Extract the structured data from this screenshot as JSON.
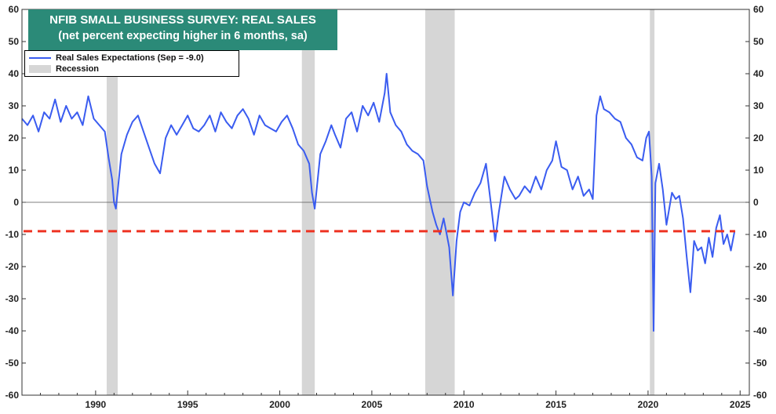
{
  "title_line1": "NFIB SMALL BUSINESS SURVEY: REAL SALES",
  "title_line2": "(net percent expecting higher in 6 months, sa)",
  "legend": {
    "series_label": "Real Sales Expectations (Sep = -9.0)",
    "recession_label": "Recession"
  },
  "colors": {
    "series": "#3a5cf0",
    "recession": "#d6d6d6",
    "reference_line": "#ee3322",
    "title_bg": "#2b8a78"
  },
  "chart_data": {
    "type": "line",
    "title": "NFIB SMALL BUSINESS SURVEY: REAL SALES",
    "subtitle": "(net percent expecting higher in 6 months, sa)",
    "xlabel": "",
    "ylabel": "",
    "xlim": [
      1986,
      2025.5
    ],
    "ylim": [
      -60,
      60
    ],
    "y_ticks": [
      60,
      50,
      40,
      30,
      20,
      10,
      0,
      -10,
      -20,
      -30,
      -40,
      -50,
      -60
    ],
    "x_ticks": [
      1990,
      1995,
      2000,
      2005,
      2010,
      2015,
      2020,
      2025
    ],
    "grid": false,
    "legend_position": "top-left",
    "reference_line": {
      "y": -9,
      "style": "dashed",
      "label": "Sep = -9.0"
    },
    "recessions": [
      [
        1990.6,
        1991.2
      ],
      [
        2001.2,
        2001.9
      ],
      [
        2007.9,
        2009.5
      ],
      [
        2020.1,
        2020.35
      ]
    ],
    "series": [
      {
        "name": "Real Sales Expectations",
        "x": [
          1986.0,
          1986.3,
          1986.6,
          1986.9,
          1987.2,
          1987.5,
          1987.8,
          1988.1,
          1988.4,
          1988.7,
          1989.0,
          1989.3,
          1989.6,
          1989.9,
          1990.2,
          1990.5,
          1990.7,
          1990.9,
          1991.0,
          1991.1,
          1991.4,
          1991.7,
          1992.0,
          1992.3,
          1992.6,
          1992.9,
          1993.2,
          1993.5,
          1993.8,
          1994.1,
          1994.4,
          1994.7,
          1995.0,
          1995.3,
          1995.6,
          1995.9,
          1996.2,
          1996.5,
          1996.8,
          1997.1,
          1997.4,
          1997.7,
          1998.0,
          1998.3,
          1998.6,
          1998.9,
          1999.2,
          1999.5,
          1999.8,
          2000.1,
          2000.4,
          2000.7,
          2001.0,
          2001.3,
          2001.6,
          2001.75,
          2001.9,
          2002.2,
          2002.5,
          2002.8,
          2003.0,
          2003.3,
          2003.6,
          2003.9,
          2004.2,
          2004.5,
          2004.8,
          2005.1,
          2005.4,
          2005.7,
          2005.8,
          2006.0,
          2006.3,
          2006.6,
          2006.9,
          2007.2,
          2007.5,
          2007.8,
          2008.0,
          2008.3,
          2008.5,
          2008.7,
          2008.9,
          2009.0,
          2009.2,
          2009.4,
          2009.6,
          2009.8,
          2010.0,
          2010.3,
          2010.6,
          2010.9,
          2011.2,
          2011.5,
          2011.7,
          2011.9,
          2012.2,
          2012.5,
          2012.8,
          2013.0,
          2013.3,
          2013.6,
          2013.9,
          2014.2,
          2014.5,
          2014.8,
          2015.0,
          2015.3,
          2015.6,
          2015.9,
          2016.2,
          2016.5,
          2016.8,
          2017.0,
          2017.2,
          2017.4,
          2017.6,
          2017.9,
          2018.2,
          2018.5,
          2018.8,
          2019.1,
          2019.4,
          2019.7,
          2019.9,
          2020.05,
          2020.2,
          2020.3,
          2020.4,
          2020.6,
          2020.8,
          2021.0,
          2021.3,
          2021.5,
          2021.7,
          2021.9,
          2022.1,
          2022.3,
          2022.5,
          2022.7,
          2022.9,
          2023.1,
          2023.3,
          2023.5,
          2023.7,
          2023.9,
          2024.1,
          2024.3,
          2024.5,
          2024.7
        ],
        "values": [
          26,
          24,
          27,
          22,
          28,
          26,
          32,
          25,
          30,
          26,
          28,
          24,
          33,
          26,
          24,
          22,
          14,
          7,
          0,
          -2,
          15,
          21,
          25,
          27,
          22,
          17,
          12,
          9,
          20,
          24,
          21,
          24,
          27,
          23,
          22,
          24,
          27,
          22,
          28,
          25,
          23,
          27,
          29,
          26,
          21,
          27,
          24,
          23,
          22,
          25,
          27,
          23,
          18,
          16,
          12,
          3,
          -2,
          15,
          19,
          24,
          21,
          17,
          26,
          28,
          22,
          30,
          27,
          31,
          25,
          34,
          40,
          28,
          24,
          22,
          18,
          16,
          15,
          13,
          5,
          -3,
          -7,
          -10,
          -5,
          -8,
          -14,
          -29,
          -12,
          -3,
          0,
          -1,
          3,
          6,
          12,
          -2,
          -12,
          -3,
          8,
          4,
          1,
          2,
          5,
          3,
          8,
          4,
          10,
          13,
          19,
          11,
          10,
          4,
          8,
          2,
          4,
          1,
          27,
          33,
          29,
          28,
          26,
          25,
          20,
          18,
          14,
          13,
          20,
          22,
          8,
          -40,
          6,
          12,
          4,
          -7,
          3,
          1,
          2,
          -5,
          -17,
          -28,
          -12,
          -15,
          -14,
          -19,
          -11,
          -17,
          -8,
          -4,
          -13,
          -10,
          -15,
          -9
        ]
      }
    ]
  }
}
